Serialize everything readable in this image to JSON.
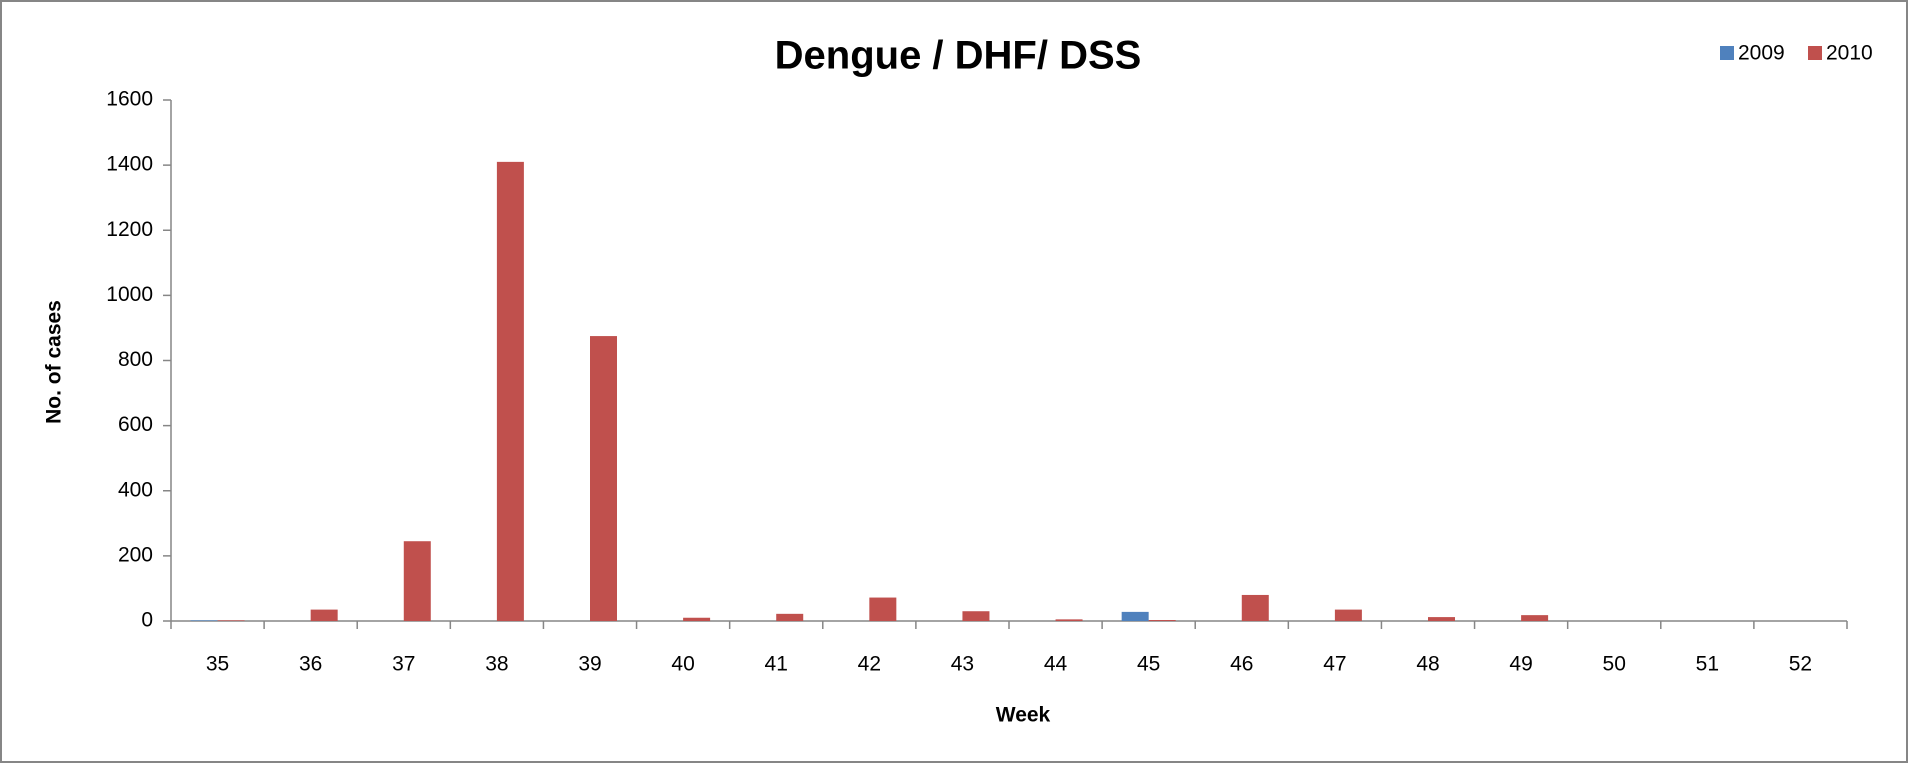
{
  "chart_data": {
    "type": "bar",
    "title": "Dengue / DHF/ DSS",
    "x_label": "Week",
    "y_label": "No. of cases",
    "categories": [
      "35",
      "36",
      "37",
      "38",
      "39",
      "40",
      "41",
      "42",
      "43",
      "44",
      "45",
      "46",
      "47",
      "48",
      "49",
      "50",
      "51",
      "52"
    ],
    "series": [
      {
        "name": "2009",
        "color": "#4f81bd",
        "values": [
          2,
          0,
          0,
          0,
          0,
          0,
          0,
          0,
          0,
          0,
          28,
          0,
          0,
          0,
          0,
          0,
          0,
          0
        ]
      },
      {
        "name": "2010",
        "color": "#c0504d",
        "values": [
          2,
          35,
          245,
          1410,
          875,
          10,
          22,
          72,
          30,
          5,
          3,
          80,
          35,
          12,
          18,
          0,
          0,
          0
        ]
      }
    ],
    "ylim": [
      0,
      1600
    ],
    "yticks": [
      0,
      200,
      400,
      600,
      800,
      1000,
      1200,
      1400,
      1600
    ],
    "legend": "top-right",
    "grid": false
  }
}
